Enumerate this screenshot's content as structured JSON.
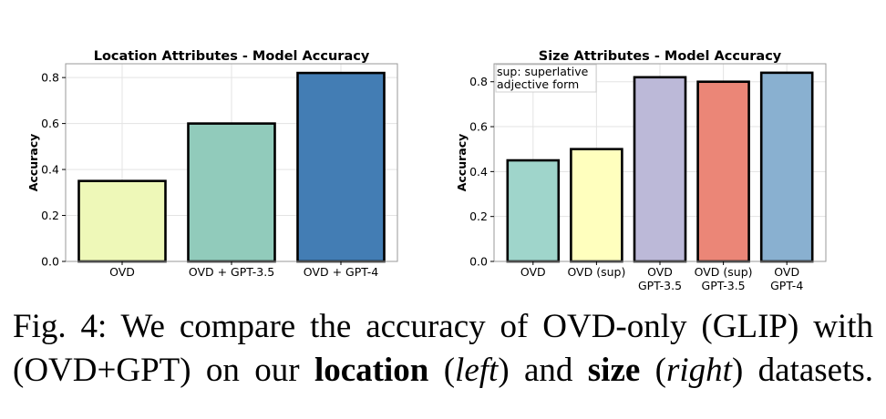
{
  "chart_data": [
    {
      "type": "bar",
      "title": "Location Attributes - Model Accuracy",
      "categories": [
        [
          "OVD"
        ],
        [
          "OVD + GPT-3.5"
        ],
        [
          "OVD + GPT-4"
        ]
      ],
      "values": [
        0.35,
        0.6,
        0.82
      ],
      "colors": [
        "#eef8b8",
        "#91cbbb",
        "#437db4"
      ],
      "xlabel": "",
      "ylabel": "Accuracy",
      "ylim": [
        0,
        0.86
      ],
      "yticks": [
        0.0,
        0.2,
        0.4,
        0.6,
        0.8
      ],
      "grid": true,
      "annotation": null
    },
    {
      "type": "bar",
      "title": "Size Attributes - Model Accuracy",
      "categories": [
        [
          "OVD"
        ],
        [
          "OVD (sup)"
        ],
        [
          "OVD",
          "GPT-3.5"
        ],
        [
          "OVD (sup)",
          "GPT-3.5"
        ],
        [
          "OVD",
          "GPT-4"
        ]
      ],
      "values": [
        0.45,
        0.5,
        0.82,
        0.8,
        0.84
      ],
      "colors": [
        "#9fd5cb",
        "#ffffbe",
        "#bcb9d8",
        "#eb8677",
        "#89b0d0"
      ],
      "xlabel": "",
      "ylabel": "Accuracy",
      "ylim": [
        0,
        0.88
      ],
      "yticks": [
        0.0,
        0.2,
        0.4,
        0.6,
        0.8
      ],
      "grid": true,
      "annotation": [
        "sup: superlative",
        "adjective form"
      ]
    }
  ],
  "caption": {
    "line1": "Fig. 4: We compare the accuracy of OVD-only (GLIP) with",
    "line2_parts": [
      {
        "text": "(OVD+GPT) on our ",
        "style": "normal"
      },
      {
        "text": "location",
        "style": "bold"
      },
      {
        "text": " (",
        "style": "normal"
      },
      {
        "text": "left",
        "style": "italic"
      },
      {
        "text": ") and ",
        "style": "normal"
      },
      {
        "text": "size",
        "style": "bold"
      },
      {
        "text": " (",
        "style": "normal"
      },
      {
        "text": "right",
        "style": "italic"
      },
      {
        "text": ") datasets.",
        "style": "normal"
      }
    ]
  }
}
